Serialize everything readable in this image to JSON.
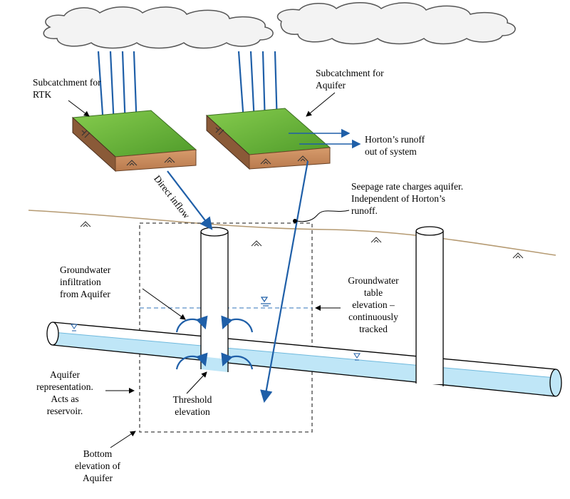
{
  "labels": {
    "subcatchment_rtk": [
      "Subcatchment for",
      "RTK"
    ],
    "subcatchment_aquifer": [
      "Subcatchment for",
      "Aquifer"
    ],
    "horton_runoff": [
      "Horton’s runoff",
      "out of system"
    ],
    "seepage": [
      "Seepage rate charges aquifer.",
      "Independent of Horton’s",
      "runoff."
    ],
    "direct_inflow": "Direct inflow",
    "gw_infiltration": [
      "Groundwater",
      "infiltration",
      "from Aquifer"
    ],
    "gw_table": [
      "Groundwater",
      "table",
      "elevation –",
      "continuously",
      "tracked"
    ],
    "aquifer_representation": [
      "Aquifer",
      "representation.",
      "Acts as",
      "reservoir."
    ],
    "threshold": [
      "Threshold",
      "elevation"
    ],
    "bottom_elevation": [
      "Bottom",
      "elevation of",
      "Aquifer"
    ]
  },
  "colors": {
    "grass": "#6abf3a",
    "soil": "#c98a5c",
    "rain": "#1f5fa8",
    "water": "#bfe6f7",
    "ground_line": "#b59a72",
    "cloud_fill": "#f3f3f3"
  },
  "icons": [
    "cloud-icon",
    "water-level-icon",
    "soil-hatch-icon",
    "infiltration-arc-icon"
  ]
}
